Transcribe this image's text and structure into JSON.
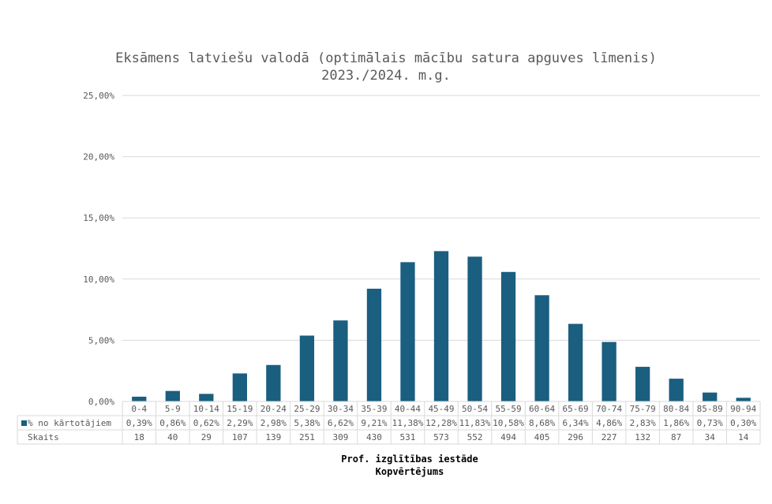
{
  "chart_data": {
    "type": "bar",
    "title": "Eksāmens latviešu valodā (optimālais mācību satura apguves līmenis)",
    "subtitle": "2023./2024. m.g.",
    "categories": [
      "0-4",
      "5-9",
      "10-14",
      "15-19",
      "20-24",
      "25-29",
      "30-34",
      "35-39",
      "40-44",
      "45-49",
      "50-54",
      "55-59",
      "60-64",
      "65-69",
      "70-74",
      "75-79",
      "80-84",
      "85-89",
      "90-94"
    ],
    "series": [
      {
        "name": "% no kārtotājiem",
        "values": [
          0.39,
          0.86,
          0.62,
          2.29,
          2.98,
          5.38,
          6.62,
          9.21,
          11.38,
          12.28,
          11.83,
          10.58,
          8.68,
          6.34,
          4.86,
          2.83,
          1.86,
          0.73,
          0.3
        ],
        "labels": [
          "0,39%",
          "0,86%",
          "0,62%",
          "2,29%",
          "2,98%",
          "5,38%",
          "6,62%",
          "9,21%",
          "11,38%",
          "12,28%",
          "11,83%",
          "10,58%",
          "8,68%",
          "6,34%",
          "4,86%",
          "2,83%",
          "1,86%",
          "0,73%",
          "0,30%"
        ],
        "color": "#1a5e80"
      }
    ],
    "table_rows": [
      {
        "name": "Skaits",
        "values": [
          "18",
          "40",
          "29",
          "107",
          "139",
          "251",
          "309",
          "430",
          "531",
          "573",
          "552",
          "494",
          "405",
          "296",
          "227",
          "132",
          "87",
          "34",
          "14"
        ]
      }
    ],
    "ylim": [
      0,
      25
    ],
    "yticks": [
      0,
      5,
      10,
      15,
      20,
      25
    ],
    "ytick_labels": [
      "0,00%",
      "5,00%",
      "10,00%",
      "15,00%",
      "20,00%",
      "25,00%"
    ],
    "xlabel_lines": [
      "Prof. izglītības iestāde",
      "Kopvērtējums"
    ],
    "grid": true,
    "legend": "data-table"
  }
}
